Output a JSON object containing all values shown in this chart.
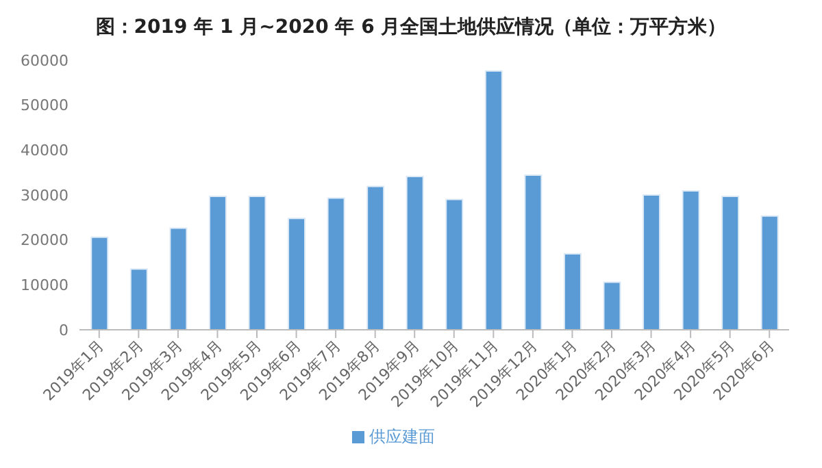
{
  "chart_data": {
    "type": "bar",
    "title": "图：2019 年 1 月~2020 年 6 月全国土地供应情况（单位：万平方米）",
    "categories": [
      "2019年1月",
      "2019年2月",
      "2019年3月",
      "2019年4月",
      "2019年5月",
      "2019年6月",
      "2019年7月",
      "2019年8月",
      "2019年9月",
      "2019年10月",
      "2019年11月",
      "2019年12月",
      "2020年1月",
      "2020年2月",
      "2020年3月",
      "2020年4月",
      "2020年5月",
      "2020年6月"
    ],
    "series": [
      {
        "name": "供应建面",
        "color": "#5b9bd5",
        "values": [
          20600,
          13500,
          22600,
          29700,
          29700,
          24800,
          29300,
          31900,
          34100,
          29000,
          57600,
          34400,
          16900,
          10600,
          30000,
          30900,
          29700,
          25300
        ]
      }
    ],
    "ylim": [
      0,
      60000
    ],
    "yticks": [
      0,
      10000,
      20000,
      30000,
      40000,
      50000,
      60000
    ],
    "grid": false,
    "legend": "bottom"
  }
}
